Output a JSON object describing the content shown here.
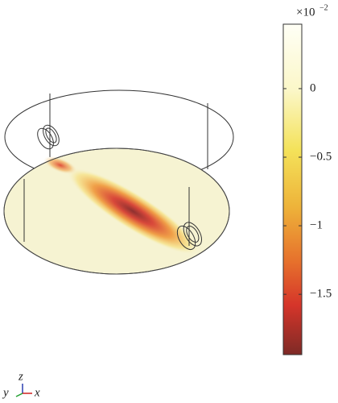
{
  "colorbar": {
    "multiplier": "×10",
    "exponent": "−2",
    "clim": [
      -1.94,
      0.47
    ],
    "ticks": [
      {
        "value": 0,
        "label": "0"
      },
      {
        "value": -0.5,
        "label": "−0.5"
      },
      {
        "value": -1,
        "label": "−1"
      },
      {
        "value": -1.5,
        "label": "−1.5"
      }
    ]
  },
  "axes": {
    "y": "y",
    "z": "z",
    "x": "x"
  }
}
